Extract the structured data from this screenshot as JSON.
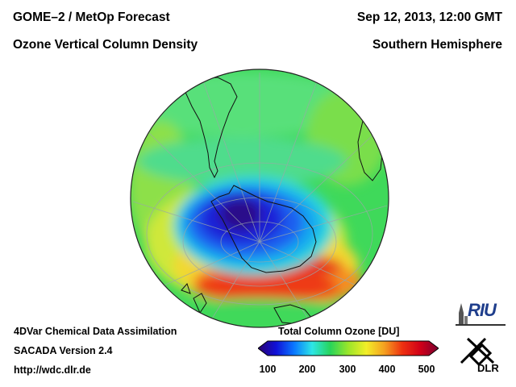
{
  "header": {
    "title_left": "GOME–2 / MetOp Forecast",
    "subtitle_left": "Ozone Vertical Column Density",
    "title_right": "Sep 12, 2013, 12:00 GMT",
    "subtitle_right": "Southern Hemisphere"
  },
  "footer": {
    "line1": "4DVar Chemical Data Assimilation",
    "line2": "SACADA Version 2.4",
    "line3": "http://wdc.dlr.de"
  },
  "colorbar": {
    "title": "Total Column Ozone [DU]",
    "ticks": [
      "100",
      "200",
      "300",
      "400",
      "500"
    ],
    "min": 100,
    "max": 500,
    "colors": [
      "#2a006e",
      "#1010d8",
      "#0a78ff",
      "#2de6e6",
      "#27d45a",
      "#9be62a",
      "#f2ee28",
      "#f5a020",
      "#ee3010",
      "#d00018",
      "#7a0030"
    ]
  },
  "map": {
    "projection": "orthographic south polar",
    "ozone_hole_min_du": 130,
    "background_du": 300
  },
  "logos": {
    "riu": "RIU",
    "dlr": "DLR"
  }
}
